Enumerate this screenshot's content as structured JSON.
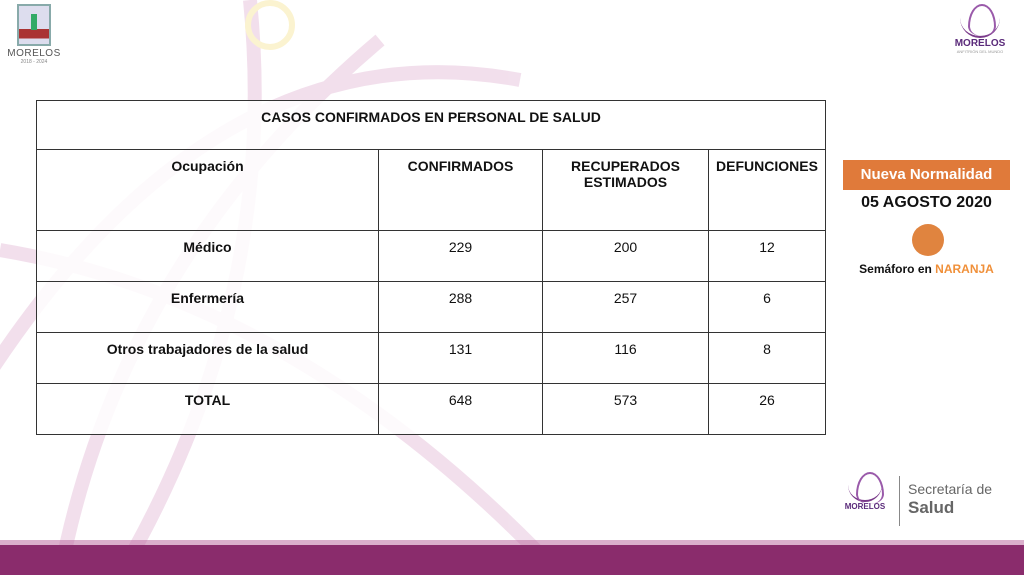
{
  "header_logo_left": {
    "name": "MORELOS",
    "years": "2018 - 2024"
  },
  "header_logo_right": {
    "name": "MORELOS",
    "tagline": "ANFITRIÓN DEL MUNDO"
  },
  "table": {
    "title": "CASOS CONFIRMADOS EN PERSONAL DE SALUD",
    "headers": [
      "Ocupación",
      "CONFIRMADOS",
      "RECUPERADOS ESTIMADOS",
      "DEFUNCIONES"
    ],
    "rows": [
      [
        "Médico",
        "229",
        "200",
        "12"
      ],
      [
        "Enfermería",
        "288",
        "257",
        "6"
      ],
      [
        "Otros trabajadores de la salud",
        "131",
        "116",
        "8"
      ],
      [
        "TOTAL",
        "648",
        "573",
        "26"
      ]
    ]
  },
  "side_panel": {
    "banner": "Nueva Normalidad",
    "date": "05 AGOSTO 2020",
    "semaforo_prefix": "Semáforo en",
    "semaforo_color_label": "NARANJA",
    "semaforo_color": "#e0843f"
  },
  "footer": {
    "logo_name": "MORELOS",
    "secretaria_line1": "Secretaría de",
    "secretaria_line2": "Salud"
  }
}
